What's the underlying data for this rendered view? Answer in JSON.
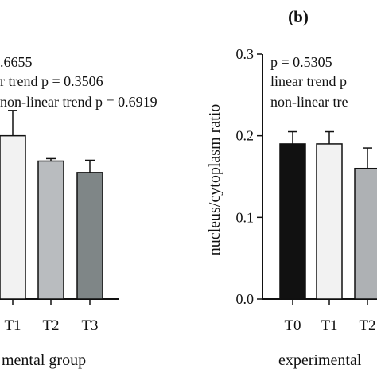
{
  "panel_label": "(b)",
  "chart_data": [
    {
      "type": "bar",
      "categories": [
        "T1",
        "T2",
        "T3"
      ],
      "partial_left_categories": "",
      "values": [
        0.2,
        0.169,
        0.155
      ],
      "errors": [
        0.031,
        0.003,
        0.015
      ],
      "colors": [
        "#f2f2f2",
        "#b9bcbf",
        "#7f8687"
      ],
      "xlabel": "mental group",
      "ylabel": "",
      "ylim": [
        0,
        0.3
      ],
      "annotations": [
        ".6655",
        "r trend p = 0.3506",
        "non-linear trend p = 0.6919"
      ]
    },
    {
      "type": "bar",
      "categories": [
        "T0",
        "T1",
        "T2"
      ],
      "values": [
        0.19,
        0.19,
        0.16
      ],
      "errors": [
        0.015,
        0.015,
        0.025
      ],
      "colors": [
        "#111111",
        "#f2f2f2",
        "#aeb1b4"
      ],
      "xlabel": "experimental",
      "ylabel": "nucleus/cytoplasm ratio",
      "ylim": [
        0,
        0.3
      ],
      "yticks": [
        "0.0",
        "0.1",
        "0.2",
        "0.3"
      ],
      "annotations": [
        "p = 0.5305",
        "linear trend p",
        "non-linear tre"
      ]
    }
  ]
}
